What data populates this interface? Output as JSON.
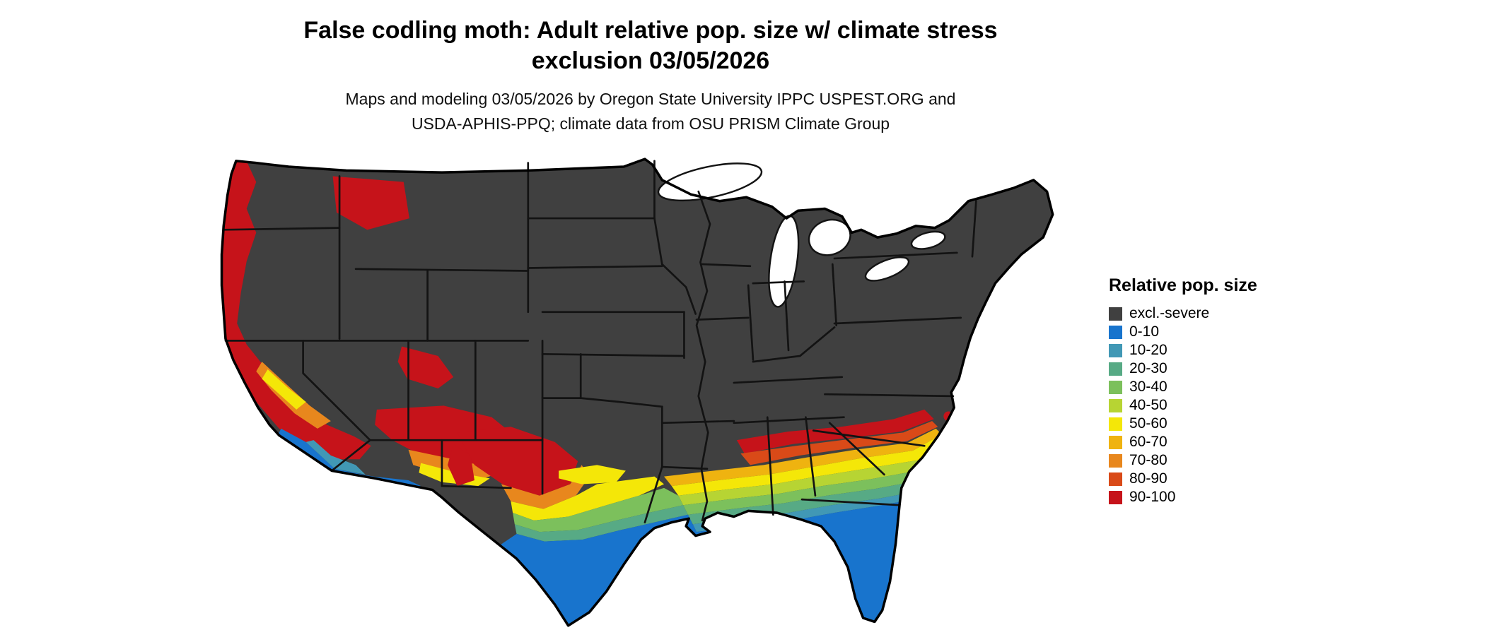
{
  "header": {
    "title_line1": "False codling moth: Adult relative pop. size w/ climate stress",
    "title_line2": "exclusion 03/05/2026",
    "subtitle_line1": "Maps and modeling 03/05/2026 by Oregon State University IPPC USPEST.ORG and",
    "subtitle_line2": "USDA-APHIS-PPQ; climate data from OSU PRISM Climate Group"
  },
  "legend": {
    "title": "Relative pop. size",
    "items": [
      {
        "label": "excl.-severe",
        "color": "#404040"
      },
      {
        "label": "0-10",
        "color": "#1874cd"
      },
      {
        "label": "10-20",
        "color": "#4198b5"
      },
      {
        "label": "20-30",
        "color": "#57aa85"
      },
      {
        "label": "30-40",
        "color": "#7cc05c"
      },
      {
        "label": "40-50",
        "color": "#b7d433"
      },
      {
        "label": "50-60",
        "color": "#f4e708"
      },
      {
        "label": "60-70",
        "color": "#efb310"
      },
      {
        "label": "70-80",
        "color": "#e8871d"
      },
      {
        "label": "80-90",
        "color": "#d94a18"
      },
      {
        "label": "90-100",
        "color": "#c6131a"
      }
    ]
  },
  "map": {
    "name": "Continental United States",
    "background_color": "#ffffff",
    "base_color": "#404040",
    "water_color": "#ffffff",
    "border_color": "#131313"
  }
}
